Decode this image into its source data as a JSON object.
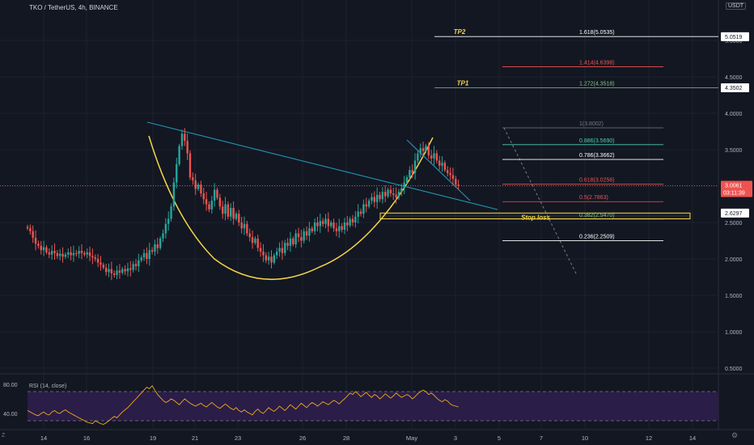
{
  "header": {
    "title": "TKO / TetherUS, 4h, BINANCE",
    "currency": "USDT",
    "zoom_label": "Z",
    "settings_icon": "gear-icon"
  },
  "colors": {
    "background": "#131722",
    "up": "#26a69a",
    "down": "#ef5350",
    "cup": "#f5d547",
    "trendline": "#2196b6",
    "rsi": "#f0a81e",
    "rsi_band": "#2a1d47"
  },
  "chart_data": {
    "type": "candlestick",
    "symbol": "TKO / TetherUS",
    "interval": "4h",
    "exchange": "BINANCE",
    "y_ticks": [
      0.5,
      1.0,
      1.5,
      2.0,
      2.5,
      3.0,
      3.5,
      4.0,
      4.5,
      5.0
    ],
    "y_tick_labels": [
      "0.5000",
      "1.0000",
      "1.5000",
      "2.0000",
      "2.5000",
      "3.0000",
      "3.5000",
      "4.0000",
      "4.5000",
      "5.0000"
    ],
    "x_tick_labels": [
      "14",
      "16",
      "19",
      "21",
      "23",
      "26",
      "28",
      "May",
      "3",
      "5",
      "7",
      "10",
      "12",
      "14"
    ],
    "close_prices": [
      2.42,
      2.38,
      2.29,
      2.21,
      2.18,
      2.12,
      2.16,
      2.09,
      2.06,
      2.11,
      2.08,
      2.04,
      2.07,
      2.03,
      2.06,
      2.09,
      2.05,
      2.08,
      2.07,
      2.11,
      2.08,
      2.06,
      2.09,
      2.04,
      2.02,
      2.0,
      1.95,
      1.92,
      1.88,
      1.82,
      1.86,
      1.8,
      1.78,
      1.84,
      1.81,
      1.86,
      1.83,
      1.87,
      1.85,
      1.93,
      1.9,
      1.98,
      2.02,
      2.08,
      2.0,
      2.12,
      2.1,
      2.2,
      2.15,
      2.28,
      2.35,
      2.48,
      2.55,
      2.72,
      3.05,
      3.3,
      3.55,
      3.72,
      3.62,
      3.45,
      3.12,
      3.08,
      2.96,
      3.02,
      2.9,
      2.82,
      2.75,
      2.68,
      2.8,
      2.95,
      2.84,
      2.72,
      2.62,
      2.75,
      2.58,
      2.7,
      2.55,
      2.62,
      2.5,
      2.42,
      2.48,
      2.35,
      2.3,
      2.22,
      2.28,
      2.15,
      2.1,
      2.05,
      1.98,
      2.03,
      1.95,
      2.05,
      2.1,
      2.15,
      2.08,
      2.22,
      2.18,
      2.28,
      2.2,
      2.35,
      2.3,
      2.25,
      2.38,
      2.32,
      2.42,
      2.38,
      2.5,
      2.45,
      2.52,
      2.48,
      2.55,
      2.45,
      2.5,
      2.42,
      2.38,
      2.45,
      2.4,
      2.5,
      2.46,
      2.55,
      2.5,
      2.58,
      2.65,
      2.62,
      2.75,
      2.72,
      2.8,
      2.85,
      2.78,
      2.88,
      2.82,
      2.92,
      2.86,
      2.95,
      2.9,
      2.88,
      2.85,
      2.92,
      2.97,
      3.05,
      3.12,
      3.22,
      3.18,
      3.35,
      3.45,
      3.52,
      3.48,
      3.55,
      3.42,
      3.38,
      3.45,
      3.35,
      3.28,
      3.32,
      3.22,
      3.18,
      3.15,
      3.1,
      3.02,
      3.01
    ],
    "price_scale_labels": [
      {
        "value": 5.0519,
        "text": "5.0519"
      },
      {
        "value": 4.3502,
        "text": "4.3502"
      },
      {
        "value": 3.0061,
        "text": "3.0061",
        "sub": "03:11:39",
        "current": true
      },
      {
        "value": 2.6297,
        "text": "2.6297"
      }
    ],
    "fibonacci": [
      {
        "text": "1.618(5.0535)",
        "value": 5.0535,
        "color": "#ffffff"
      },
      {
        "text": "1.414(4.6398)",
        "value": 4.6398,
        "color": "#ef5350"
      },
      {
        "text": "1.272(4.3518)",
        "value": 4.3518,
        "color": "#81c784"
      },
      {
        "text": "1(3.8002)",
        "value": 3.8002,
        "color": "#787b86"
      },
      {
        "text": "0.886(3.5690)",
        "value": 3.569,
        "color": "#4dd0b4"
      },
      {
        "text": "0.786(3.3662)",
        "value": 3.3662,
        "color": "#ffffff"
      },
      {
        "text": "0.618(3.0256)",
        "value": 3.0256,
        "color": "#ef5350"
      },
      {
        "text": "0.5(2.7863)",
        "value": 2.7863,
        "color": "#ef5350"
      },
      {
        "text": "0.382(2.5470)",
        "value": 2.547,
        "color": "#81c784"
      },
      {
        "text": "0.236(2.2509)",
        "value": 2.2509,
        "color": "#ffffff"
      }
    ],
    "annotations": [
      {
        "text": "TP2",
        "value": 5.0535
      },
      {
        "text": "TP1",
        "value": 4.3518
      },
      {
        "text": "Stop loss",
        "value": 2.547
      }
    ],
    "rsi": {
      "label": "RSI (14, close)",
      "y_tick_labels": [
        "80.00",
        "40.00"
      ],
      "bands": [
        70,
        30
      ],
      "values": [
        44,
        42,
        40,
        38,
        37,
        40,
        42,
        39,
        38,
        42,
        44,
        41,
        40,
        43,
        45,
        42,
        40,
        38,
        36,
        34,
        32,
        30,
        28,
        27,
        26,
        30,
        28,
        26,
        25,
        27,
        30,
        33,
        36,
        34,
        38,
        42,
        45,
        48,
        52,
        56,
        60,
        64,
        68,
        72,
        76,
        74,
        78,
        72,
        66,
        62,
        58,
        55,
        57,
        60,
        58,
        55,
        52,
        56,
        60,
        57,
        54,
        52,
        50,
        52,
        54,
        51,
        49,
        52,
        55,
        52,
        49,
        47,
        50,
        53,
        50,
        47,
        45,
        48,
        44,
        42,
        45,
        42,
        40,
        38,
        43,
        46,
        42,
        40,
        44,
        48,
        45,
        43,
        46,
        50,
        47,
        44,
        48,
        52,
        49,
        46,
        50,
        54,
        51,
        48,
        52,
        55,
        53,
        50,
        53,
        56,
        54,
        52,
        55,
        58,
        56,
        53,
        57,
        60,
        64,
        68,
        66,
        70,
        67,
        63,
        66,
        69,
        65,
        62,
        66,
        64,
        60,
        63,
        67,
        64,
        61,
        64,
        68,
        65,
        62,
        64,
        66,
        64,
        60,
        63,
        67,
        70,
        72,
        70,
        66,
        68,
        65,
        61,
        58,
        56,
        59,
        57,
        53,
        51,
        50,
        49
      ]
    }
  }
}
